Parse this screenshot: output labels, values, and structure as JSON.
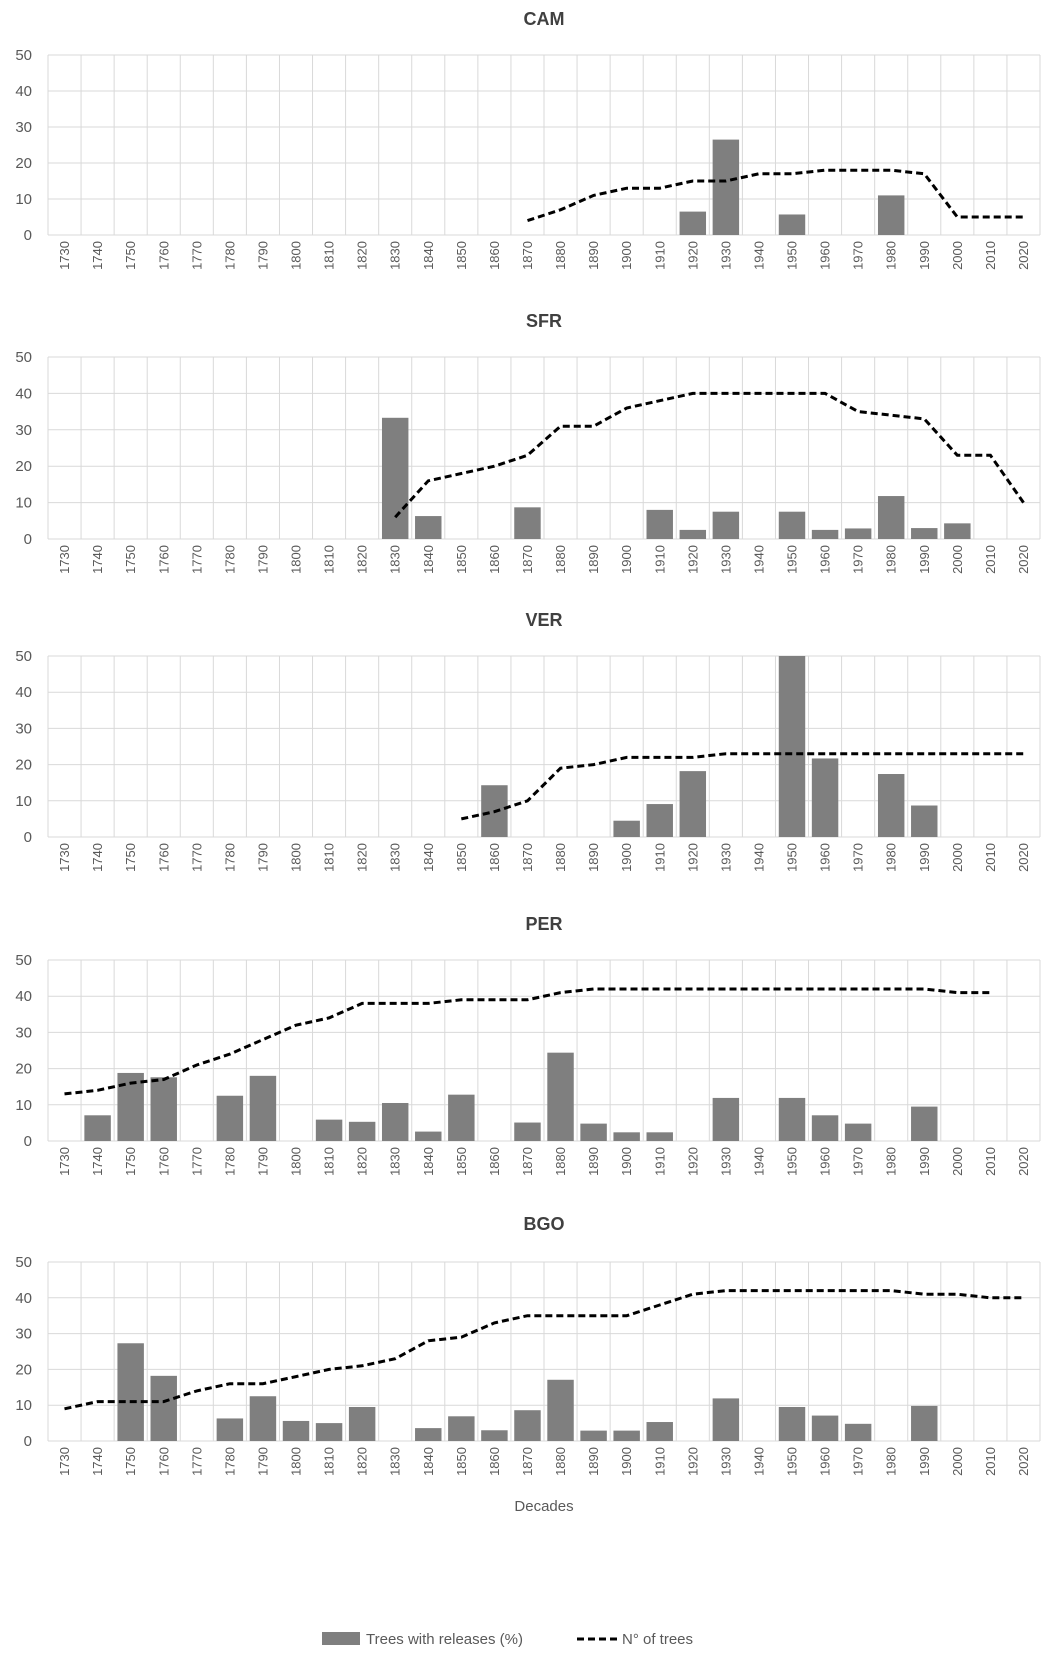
{
  "chart_data": [
    {
      "type": "bar",
      "title": "CAM",
      "categories": [
        "1730",
        "1740",
        "1750",
        "1760",
        "1770",
        "1780",
        "1790",
        "1800",
        "1810",
        "1820",
        "1830",
        "1840",
        "1850",
        "1860",
        "1870",
        "1880",
        "1890",
        "1900",
        "1910",
        "1920",
        "1930",
        "1940",
        "1950",
        "1960",
        "1970",
        "1980",
        "1990",
        "2000",
        "2010",
        "2020"
      ],
      "ylim": [
        0,
        50
      ],
      "yticks": [
        0,
        10,
        20,
        30,
        40,
        50
      ],
      "xlabel": "",
      "series": [
        {
          "kind": "bar",
          "color": "#7f7f7f",
          "values": [
            null,
            null,
            null,
            null,
            null,
            null,
            null,
            null,
            null,
            null,
            null,
            null,
            null,
            null,
            null,
            null,
            null,
            null,
            null,
            6.5,
            26.5,
            null,
            5.7,
            null,
            null,
            11,
            null,
            null,
            null,
            null
          ]
        },
        {
          "kind": "line",
          "color": "#000000",
          "values": [
            null,
            null,
            null,
            null,
            null,
            null,
            null,
            null,
            null,
            null,
            null,
            null,
            null,
            null,
            4,
            7,
            11,
            13,
            13,
            15,
            15,
            17,
            17,
            18,
            18,
            18,
            17,
            5,
            5,
            5
          ]
        }
      ]
    },
    {
      "type": "bar",
      "title": "SFR",
      "categories": [
        "1730",
        "1740",
        "1750",
        "1760",
        "1770",
        "1780",
        "1790",
        "1800",
        "1810",
        "1820",
        "1830",
        "1840",
        "1850",
        "1860",
        "1870",
        "1880",
        "1890",
        "1900",
        "1910",
        "1920",
        "1930",
        "1940",
        "1950",
        "1960",
        "1970",
        "1980",
        "1990",
        "2000",
        "2010",
        "2020"
      ],
      "ylim": [
        0,
        50
      ],
      "yticks": [
        0,
        10,
        20,
        30,
        40,
        50
      ],
      "xlabel": "",
      "series": [
        {
          "kind": "bar",
          "color": "#7f7f7f",
          "values": [
            null,
            null,
            null,
            null,
            null,
            null,
            null,
            null,
            null,
            null,
            33.3,
            6.3,
            null,
            null,
            8.7,
            null,
            null,
            null,
            8,
            2.5,
            7.5,
            null,
            7.5,
            2.5,
            2.9,
            11.8,
            3,
            4.3,
            null,
            null
          ]
        },
        {
          "kind": "line",
          "color": "#000000",
          "values": [
            null,
            null,
            null,
            null,
            null,
            null,
            null,
            null,
            null,
            null,
            6,
            16,
            18,
            20,
            23,
            31,
            31,
            36,
            38,
            40,
            40,
            40,
            40,
            40,
            35,
            34,
            33,
            23,
            23,
            10
          ]
        }
      ]
    },
    {
      "type": "bar",
      "title": "VER",
      "categories": [
        "1730",
        "1740",
        "1750",
        "1760",
        "1770",
        "1780",
        "1790",
        "1800",
        "1810",
        "1820",
        "1830",
        "1840",
        "1850",
        "1860",
        "1870",
        "1880",
        "1890",
        "1900",
        "1910",
        "1920",
        "1930",
        "1940",
        "1950",
        "1960",
        "1970",
        "1980",
        "1990",
        "2000",
        "2010",
        "2020"
      ],
      "ylim": [
        0,
        50
      ],
      "yticks": [
        0,
        10,
        20,
        30,
        40,
        50
      ],
      "xlabel": "",
      "series": [
        {
          "kind": "bar",
          "color": "#7f7f7f",
          "values": [
            null,
            null,
            null,
            null,
            null,
            null,
            null,
            null,
            null,
            null,
            null,
            null,
            null,
            14.3,
            null,
            null,
            null,
            4.5,
            9.1,
            18.2,
            null,
            null,
            50,
            21.7,
            null,
            17.4,
            8.7,
            null,
            null,
            null
          ]
        },
        {
          "kind": "line",
          "color": "#000000",
          "values": [
            null,
            null,
            null,
            null,
            null,
            null,
            null,
            null,
            null,
            null,
            null,
            null,
            5,
            7,
            10,
            19,
            20,
            22,
            22,
            22,
            23,
            23,
            23,
            23,
            23,
            23,
            23,
            23,
            23,
            23
          ]
        }
      ]
    },
    {
      "type": "bar",
      "title": "PER",
      "categories": [
        "1730",
        "1740",
        "1750",
        "1760",
        "1770",
        "1780",
        "1790",
        "1800",
        "1810",
        "1820",
        "1830",
        "1840",
        "1850",
        "1860",
        "1870",
        "1880",
        "1890",
        "1900",
        "1910",
        "1920",
        "1930",
        "1940",
        "1950",
        "1960",
        "1970",
        "1980",
        "1990",
        "2000",
        "2010",
        "2020"
      ],
      "ylim": [
        0,
        50
      ],
      "yticks": [
        0,
        10,
        20,
        30,
        40,
        50
      ],
      "xlabel": "",
      "series": [
        {
          "kind": "bar",
          "color": "#7f7f7f",
          "values": [
            null,
            7.1,
            18.8,
            17.6,
            null,
            12.5,
            18,
            null,
            5.9,
            5.3,
            10.5,
            2.6,
            12.8,
            null,
            5.1,
            24.4,
            4.8,
            2.4,
            2.4,
            null,
            11.9,
            null,
            11.9,
            7.1,
            4.8,
            null,
            9.5,
            null,
            null,
            null
          ]
        },
        {
          "kind": "line",
          "color": "#000000",
          "values": [
            13,
            14,
            16,
            17,
            21,
            24,
            28,
            32,
            34,
            38,
            38,
            38,
            39,
            39,
            39,
            41,
            42,
            42,
            42,
            42,
            42,
            42,
            42,
            42,
            42,
            42,
            42,
            41,
            41,
            null
          ]
        }
      ]
    },
    {
      "type": "bar",
      "title": "BGO",
      "categories": [
        "1730",
        "1740",
        "1750",
        "1760",
        "1770",
        "1780",
        "1790",
        "1800",
        "1810",
        "1820",
        "1830",
        "1840",
        "1850",
        "1860",
        "1870",
        "1880",
        "1890",
        "1900",
        "1910",
        "1920",
        "1930",
        "1940",
        "1950",
        "1960",
        "1970",
        "1980",
        "1990",
        "2000",
        "2010",
        "2020"
      ],
      "ylim": [
        0,
        50
      ],
      "yticks": [
        0,
        10,
        20,
        30,
        40,
        50
      ],
      "xlabel": "Decades",
      "series": [
        {
          "kind": "bar",
          "color": "#7f7f7f",
          "values": [
            null,
            null,
            27.3,
            18.2,
            null,
            6.3,
            12.5,
            5.6,
            5,
            9.5,
            null,
            3.6,
            6.9,
            3,
            8.6,
            17.1,
            2.9,
            2.9,
            5.3,
            null,
            11.9,
            null,
            9.5,
            7.1,
            4.8,
            null,
            9.8,
            null,
            null,
            null
          ]
        },
        {
          "kind": "line",
          "color": "#000000",
          "values": [
            9,
            11,
            11,
            11,
            14,
            16,
            16,
            18,
            20,
            21,
            23,
            28,
            29,
            33,
            35,
            35,
            35,
            35,
            38,
            41,
            42,
            42,
            42,
            42,
            42,
            42,
            41,
            41,
            40,
            40
          ]
        }
      ]
    }
  ],
  "legend": {
    "position": "bottom",
    "items": [
      {
        "label": "Trees with releases (%)",
        "kind": "bar",
        "color": "#7f7f7f"
      },
      {
        "label": "N° of trees",
        "kind": "line",
        "color": "#000000"
      }
    ]
  }
}
